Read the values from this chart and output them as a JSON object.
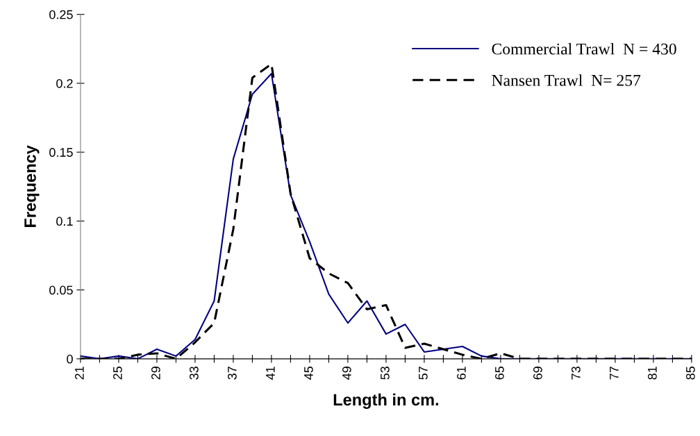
{
  "chart_data": {
    "type": "line",
    "xlabel": "Length in cm.",
    "ylabel": "Frequency",
    "categories": [
      "21",
      null,
      "25",
      null,
      "29",
      null,
      "33",
      null,
      "37",
      null,
      "41",
      null,
      "45",
      null,
      "49",
      null,
      "53",
      null,
      "57",
      null,
      "61",
      null,
      "65",
      null,
      "69",
      null,
      "73",
      null,
      "77",
      null,
      "81",
      null,
      "85"
    ],
    "series": [
      {
        "name": "Commercial Trawl  N = 430",
        "color": "#000080",
        "line_style": "solid",
        "values": [
          0.002,
          0,
          0.002,
          0,
          0.007,
          0.002,
          0.014,
          0.042,
          0.145,
          0.192,
          0.207,
          0.119,
          0.085,
          0.047,
          0.026,
          0.042,
          0.018,
          0.025,
          0.005,
          0.007,
          0.009,
          0.002,
          0,
          0,
          0,
          0,
          0,
          0,
          0,
          0,
          0,
          0,
          0
        ]
      },
      {
        "name": "Nansen Trawl  N= 257",
        "color": "#000000",
        "line_style": "dashed",
        "values": [
          0,
          0,
          0,
          0.003,
          0.004,
          0,
          0.012,
          0.026,
          0.094,
          0.204,
          0.214,
          0.12,
          0.073,
          0.062,
          0.055,
          0.036,
          0.039,
          0.008,
          0.011,
          0.007,
          0.003,
          0,
          0.004,
          0,
          0,
          0,
          0,
          0,
          0,
          0,
          0,
          0,
          0
        ]
      }
    ],
    "ylim": [
      0,
      0.25
    ],
    "yticks": [
      0,
      0.05,
      0.1,
      0.15,
      0.2,
      0.25
    ],
    "grid": false,
    "legend": "top right",
    "marker": "none"
  }
}
